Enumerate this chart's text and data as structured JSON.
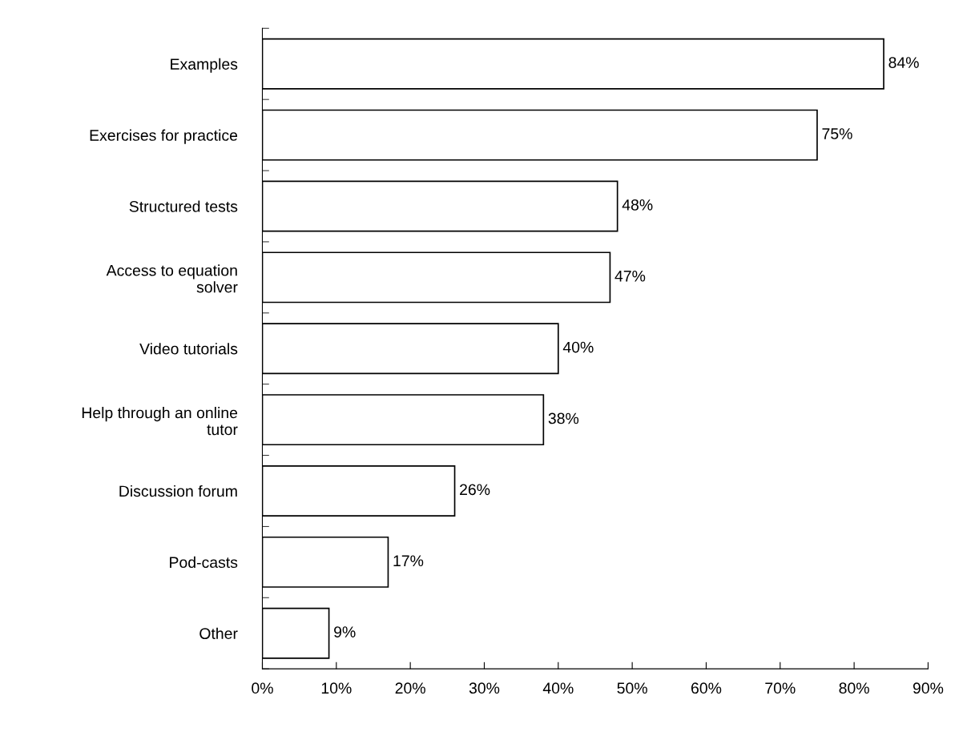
{
  "chart_data": {
    "type": "bar",
    "orientation": "horizontal",
    "categories": [
      "Examples",
      "Exercises for practice",
      "Structured tests",
      "Access to equation\nsolver",
      "Video tutorials",
      "Help through an online\ntutor",
      "Discussion forum",
      "Pod-casts",
      "Other"
    ],
    "values": [
      84,
      75,
      48,
      47,
      40,
      38,
      26,
      17,
      9
    ],
    "value_labels": [
      "84%",
      "75%",
      "48%",
      "47%",
      "40%",
      "38%",
      "26%",
      "17%",
      "9%"
    ],
    "color": "#ffffff",
    "xlim": [
      0,
      90
    ],
    "xticks": [
      {
        "value": 0,
        "label": "0%"
      },
      {
        "value": 10,
        "label": "10%"
      },
      {
        "value": 20,
        "label": "20%"
      },
      {
        "value": 30,
        "label": "30%"
      },
      {
        "value": 40,
        "label": "40%"
      },
      {
        "value": 50,
        "label": "50%"
      },
      {
        "value": 60,
        "label": "60%"
      },
      {
        "value": 70,
        "label": "70%"
      },
      {
        "value": 80,
        "label": "80%"
      },
      {
        "value": 90,
        "label": "90%"
      }
    ],
    "grid": false,
    "legend": false
  }
}
